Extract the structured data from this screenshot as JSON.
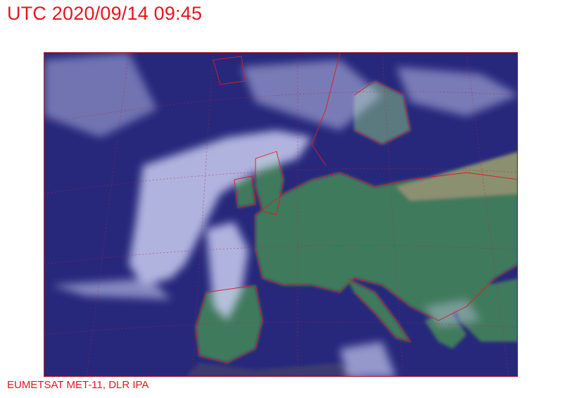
{
  "header": {
    "title": "UTC 2020/09/14 09:45"
  },
  "footer": {
    "credit": "EUMETSAT MET-11, DLR IPA"
  },
  "image": {
    "content": "satellite-imagery-europe",
    "colors": {
      "ocean": "#25257a",
      "land": "#3f7a5a",
      "cloud": "#c8ccee",
      "borders": "#e01a20"
    }
  }
}
